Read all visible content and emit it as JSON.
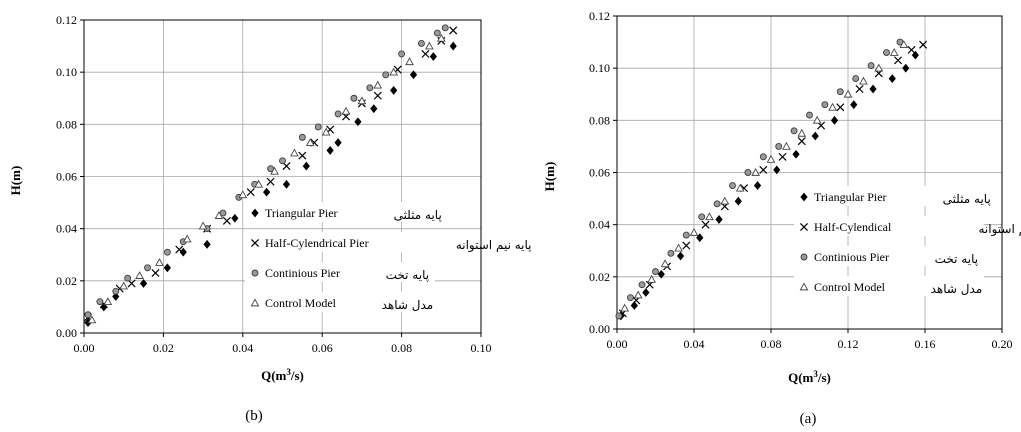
{
  "chart_data": [
    {
      "panel": "b",
      "type": "scatter",
      "caption": "(b)",
      "xlabel": "Q(m3/s)",
      "ylabel": "H(m)",
      "xlim": [
        0,
        0.1
      ],
      "ylim": [
        0,
        0.12
      ],
      "xticks": [
        "0.00",
        "0.02",
        "0.04",
        "0.06",
        "0.08",
        "0.10"
      ],
      "yticks": [
        "0.00",
        "0.02",
        "0.04",
        "0.06",
        "0.08",
        "0.10",
        "0.12"
      ],
      "grid": true,
      "legend_position": "bottom-right",
      "series": [
        {
          "name": "Triangular Pier",
          "name_fa": "پایه مثلثی",
          "marker": "diamond",
          "x": [
            0.001,
            0.005,
            0.008,
            0.015,
            0.021,
            0.025,
            0.031,
            0.038,
            0.046,
            0.051,
            0.056,
            0.062,
            0.064,
            0.069,
            0.073,
            0.078,
            0.083,
            0.088,
            0.093
          ],
          "y": [
            0.004,
            0.01,
            0.014,
            0.019,
            0.025,
            0.031,
            0.034,
            0.044,
            0.054,
            0.057,
            0.064,
            0.07,
            0.073,
            0.081,
            0.086,
            0.093,
            0.099,
            0.106,
            0.11
          ]
        },
        {
          "name": "Half-Cylendrical Pier",
          "name_fa": "پایه نیم استوانه",
          "marker": "x",
          "x": [
            0.001,
            0.005,
            0.009,
            0.012,
            0.018,
            0.024,
            0.031,
            0.036,
            0.042,
            0.047,
            0.051,
            0.055,
            0.058,
            0.062,
            0.066,
            0.07,
            0.074,
            0.079,
            0.086,
            0.09,
            0.093
          ],
          "y": [
            0.006,
            0.011,
            0.017,
            0.019,
            0.023,
            0.032,
            0.04,
            0.043,
            0.054,
            0.058,
            0.064,
            0.068,
            0.073,
            0.078,
            0.083,
            0.088,
            0.091,
            0.101,
            0.107,
            0.112,
            0.116
          ]
        },
        {
          "name": "Continious Pier",
          "name_fa": "پایه تخت",
          "marker": "circle",
          "x": [
            0.001,
            0.004,
            0.008,
            0.011,
            0.016,
            0.021,
            0.025,
            0.031,
            0.035,
            0.039,
            0.043,
            0.047,
            0.05,
            0.055,
            0.059,
            0.064,
            0.068,
            0.072,
            0.076,
            0.08,
            0.085,
            0.089,
            0.091
          ],
          "y": [
            0.007,
            0.012,
            0.016,
            0.021,
            0.025,
            0.031,
            0.035,
            0.04,
            0.046,
            0.052,
            0.057,
            0.063,
            0.066,
            0.075,
            0.079,
            0.084,
            0.09,
            0.094,
            0.099,
            0.107,
            0.111,
            0.115,
            0.117
          ]
        },
        {
          "name": "Control Model",
          "name_fa": "مدل شاهد",
          "marker": "triangle",
          "x": [
            0.002,
            0.006,
            0.01,
            0.014,
            0.019,
            0.026,
            0.03,
            0.034,
            0.04,
            0.044,
            0.048,
            0.053,
            0.057,
            0.061,
            0.066,
            0.07,
            0.074,
            0.078,
            0.082,
            0.087,
            0.09
          ],
          "y": [
            0.005,
            0.012,
            0.018,
            0.022,
            0.027,
            0.036,
            0.041,
            0.045,
            0.053,
            0.057,
            0.062,
            0.069,
            0.073,
            0.077,
            0.085,
            0.089,
            0.095,
            0.1,
            0.104,
            0.11,
            0.113
          ]
        }
      ]
    },
    {
      "panel": "a",
      "type": "scatter",
      "caption": "(a)",
      "xlabel": "Q(m3/s)",
      "ylabel": "H(m)",
      "xlim": [
        0,
        0.2
      ],
      "ylim": [
        0,
        0.12
      ],
      "xticks": [
        "0.00",
        "0.04",
        "0.08",
        "0.12",
        "0.16",
        "0.20"
      ],
      "yticks": [
        "0.00",
        "0.02",
        "0.04",
        "0.06",
        "0.08",
        "0.10",
        "0.12"
      ],
      "grid": true,
      "legend_position": "bottom-right",
      "series": [
        {
          "name": "Triangular Pier",
          "name_fa": "پایه مثلثی",
          "marker": "diamond",
          "x": [
            0.002,
            0.009,
            0.015,
            0.023,
            0.033,
            0.043,
            0.053,
            0.063,
            0.073,
            0.083,
            0.093,
            0.103,
            0.113,
            0.123,
            0.133,
            0.143,
            0.15,
            0.155
          ],
          "y": [
            0.005,
            0.009,
            0.014,
            0.021,
            0.028,
            0.035,
            0.042,
            0.049,
            0.055,
            0.061,
            0.067,
            0.074,
            0.08,
            0.086,
            0.092,
            0.096,
            0.1,
            0.105
          ],
          "extra": []
        },
        {
          "name": "Half-Cylendical",
          "name_fa": "پایه نیم استوانه",
          "marker": "x",
          "x": [
            0.003,
            0.01,
            0.017,
            0.026,
            0.036,
            0.046,
            0.056,
            0.066,
            0.076,
            0.086,
            0.096,
            0.106,
            0.116,
            0.126,
            0.136,
            0.146,
            0.153,
            0.159
          ],
          "y": [
            0.006,
            0.011,
            0.017,
            0.024,
            0.032,
            0.04,
            0.047,
            0.054,
            0.061,
            0.066,
            0.072,
            0.078,
            0.085,
            0.092,
            0.098,
            0.103,
            0.107,
            0.109
          ]
        },
        {
          "name": "Continious Pier",
          "name_fa": "پایه تخت",
          "marker": "circle",
          "x": [
            0.001,
            0.007,
            0.013,
            0.02,
            0.028,
            0.036,
            0.044,
            0.052,
            0.06,
            0.068,
            0.076,
            0.084,
            0.092,
            0.1,
            0.108,
            0.116,
            0.124,
            0.132,
            0.14,
            0.147
          ],
          "y": [
            0.005,
            0.012,
            0.017,
            0.022,
            0.029,
            0.036,
            0.043,
            0.048,
            0.055,
            0.06,
            0.066,
            0.07,
            0.076,
            0.082,
            0.086,
            0.091,
            0.096,
            0.101,
            0.106,
            0.11
          ]
        },
        {
          "name": "Control Model",
          "name_fa": "مدل شاهد",
          "marker": "triangle",
          "x": [
            0.004,
            0.011,
            0.018,
            0.025,
            0.032,
            0.04,
            0.048,
            0.056,
            0.064,
            0.072,
            0.08,
            0.088,
            0.096,
            0.104,
            0.112,
            0.12,
            0.128,
            0.136,
            0.144,
            0.149
          ],
          "y": [
            0.008,
            0.013,
            0.019,
            0.025,
            0.031,
            0.037,
            0.043,
            0.049,
            0.054,
            0.06,
            0.065,
            0.07,
            0.075,
            0.08,
            0.085,
            0.09,
            0.095,
            0.1,
            0.106,
            0.109
          ]
        }
      ]
    }
  ]
}
